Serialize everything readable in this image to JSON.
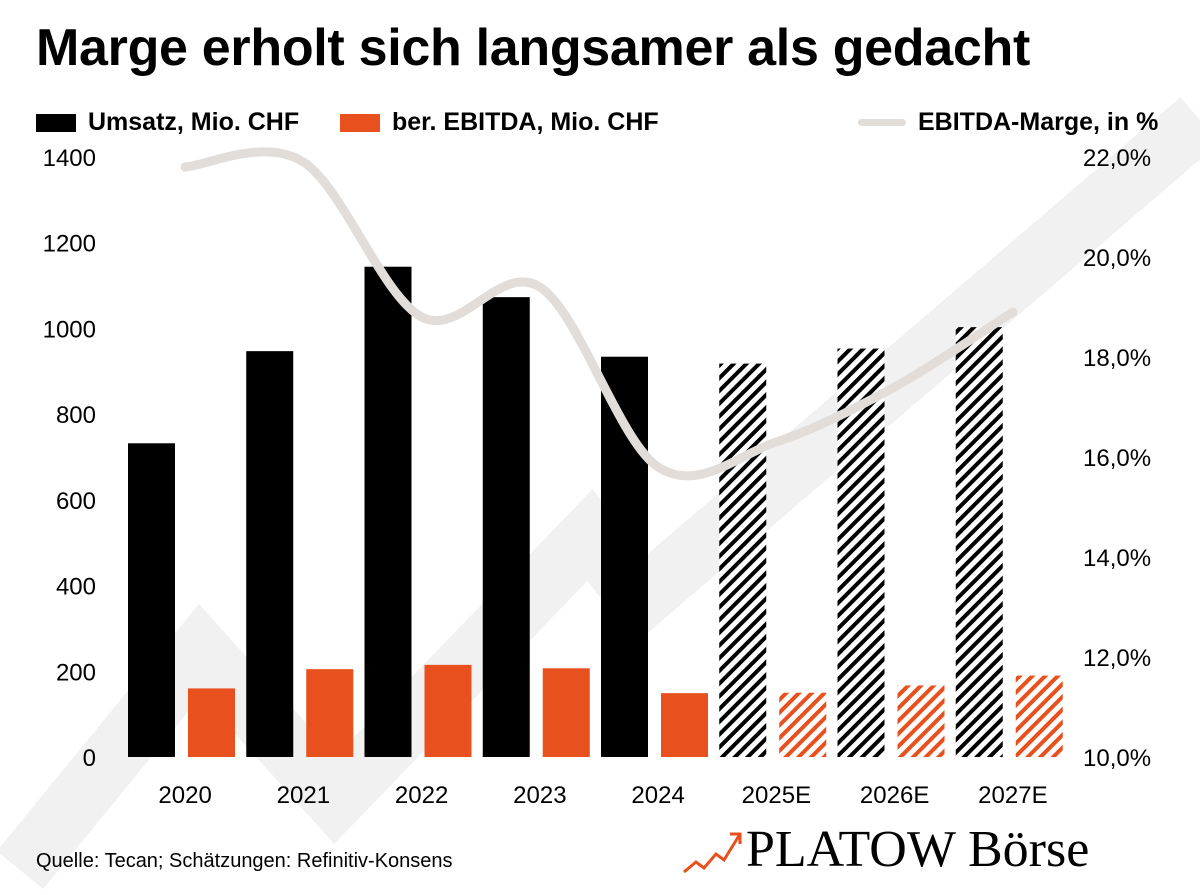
{
  "header": {
    "title": "Marge erholt sich langsamer als gedacht"
  },
  "legend": {
    "revenue_label": "Umsatz, Mio. CHF",
    "ebitda_label": "ber. EBITDA, Mio. CHF",
    "margin_label": "EBITDA-Marge, in %"
  },
  "footer": {
    "source": "Quelle: Tecan; Schätzungen: Refinitiv-Konsens",
    "brand": "PLATOW Börse"
  },
  "colors": {
    "revenue": "#000000",
    "ebitda": "#e8501e",
    "margin_line": "#e3ddd9",
    "background_arrow": "#f1f1f1"
  },
  "chart_data": {
    "type": "bar",
    "categories": [
      "2020",
      "2021",
      "2022",
      "2023",
      "2024",
      "2025E",
      "2026E",
      "2027E"
    ],
    "estimate_from_index": 5,
    "series": [
      {
        "name": "Umsatz, Mio. CHF",
        "axis": "left",
        "values": [
          732,
          947,
          1144,
          1073,
          934,
          918,
          953,
          1003
        ]
      },
      {
        "name": "ber. EBITDA, Mio. CHF",
        "axis": "left",
        "values": [
          160,
          205,
          215,
          207,
          149,
          150,
          167,
          190
        ]
      },
      {
        "name": "EBITDA-Marge, in %",
        "axis": "right",
        "type": "line",
        "values": [
          21.8,
          21.9,
          18.8,
          19.4,
          15.8,
          16.3,
          17.4,
          18.9
        ]
      }
    ],
    "ylim_left": [
      0,
      1400
    ],
    "yticks_left": [
      0,
      200,
      400,
      600,
      800,
      1000,
      1200,
      1400
    ],
    "ylim_right": [
      10,
      22
    ],
    "yticks_right": [
      "10,0%",
      "12,0%",
      "14,0%",
      "16,0%",
      "18,0%",
      "20,0%",
      "22,0%"
    ],
    "grid": false,
    "legend_position": "top"
  }
}
